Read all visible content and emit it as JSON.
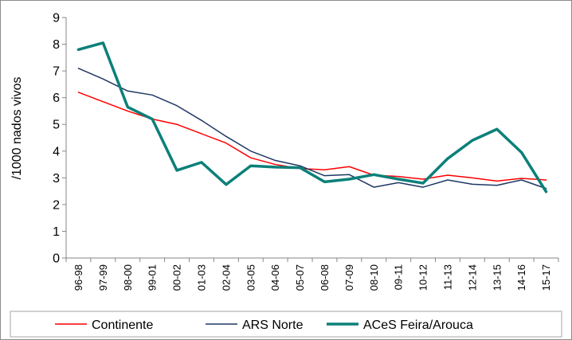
{
  "chart_data": {
    "type": "line",
    "title": "",
    "xlabel": "",
    "ylabel": "/1000 nados vivos",
    "ylim": [
      0,
      9
    ],
    "yticks": [
      "0",
      "1",
      "2",
      "3",
      "4",
      "5",
      "6",
      "7",
      "8",
      "9"
    ],
    "grid": false,
    "legend_position": "bottom",
    "categories": [
      "96-98",
      "97-99",
      "98-00",
      "99-01",
      "00-02",
      "01-03",
      "02-04",
      "03-05",
      "04-06",
      "05-07",
      "06-08",
      "07-09",
      "08-10",
      "09-11",
      "10-12",
      "11-13",
      "12-14",
      "13-15",
      "14-16",
      "15-17"
    ],
    "series": [
      {
        "name": "Continente",
        "color": "#ff0000",
        "values": [
          6.2,
          5.85,
          5.5,
          5.2,
          5.0,
          4.65,
          4.3,
          3.75,
          3.5,
          3.35,
          3.3,
          3.42,
          3.1,
          3.05,
          2.95,
          3.1,
          3.0,
          2.88,
          2.98,
          2.92
        ]
      },
      {
        "name": "ARS Norte",
        "color": "#1f3864",
        "values": [
          7.1,
          6.7,
          6.25,
          6.1,
          5.7,
          5.15,
          4.55,
          4.0,
          3.65,
          3.45,
          3.08,
          3.12,
          2.65,
          2.82,
          2.65,
          2.92,
          2.76,
          2.72,
          2.92,
          2.6
        ]
      },
      {
        "name": "ACeS Feira/Arouca",
        "color": "#0b8079",
        "values": [
          7.8,
          8.05,
          5.65,
          5.2,
          3.28,
          3.58,
          2.75,
          3.45,
          3.4,
          3.38,
          2.85,
          2.95,
          3.12,
          2.95,
          2.8,
          3.72,
          4.4,
          4.82,
          3.95,
          2.48
        ]
      }
    ]
  }
}
